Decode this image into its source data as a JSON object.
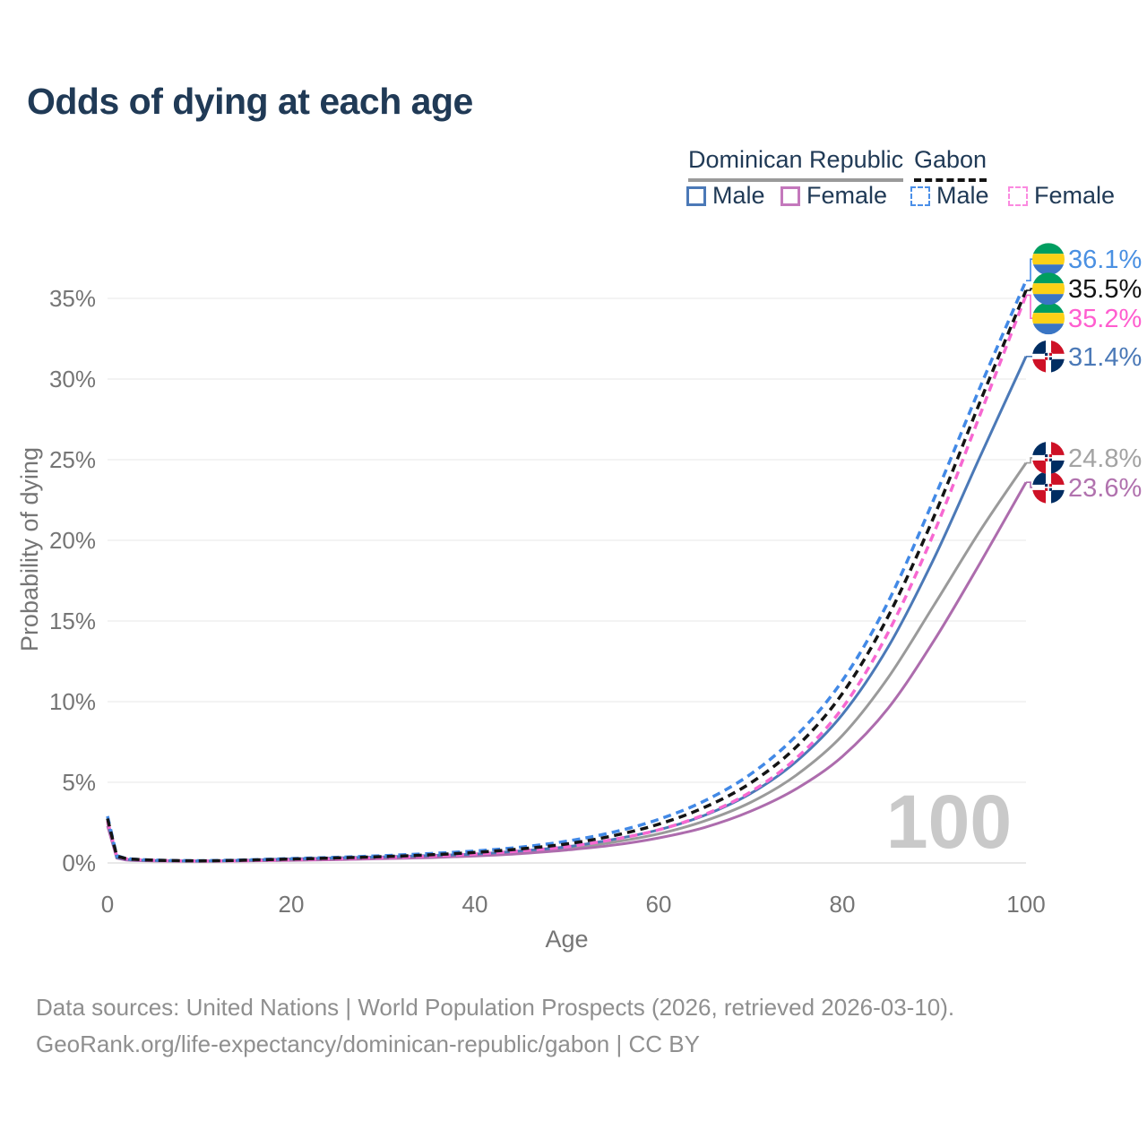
{
  "title": "Odds of dying at each age",
  "watermark_age": "100",
  "legend": {
    "groups": [
      {
        "label": "Dominican Republic",
        "line_style": "solid",
        "line_color": "#9a9a9a"
      },
      {
        "label": "Gabon",
        "line_style": "dashed",
        "line_color": "#141414"
      }
    ],
    "items": [
      {
        "label": "Male",
        "group": "Dominican Republic",
        "swatch_color": "#4b79b7",
        "swatch_style": "solid"
      },
      {
        "label": "Female",
        "group": "Dominican Republic",
        "swatch_color": "#c478bc",
        "swatch_style": "solid"
      },
      {
        "label": "Male",
        "group": "Gabon",
        "swatch_color": "#4a8fe8",
        "swatch_style": "dashed"
      },
      {
        "label": "Female",
        "group": "Gabon",
        "swatch_color": "#fb8ae0",
        "swatch_style": "dashed"
      }
    ]
  },
  "chart_data": {
    "type": "line",
    "title": "Odds of dying at each age",
    "xlabel": "Age",
    "ylabel": "Probability of dying",
    "xlim": [
      0,
      100
    ],
    "ylim": [
      0,
      38.5
    ],
    "x_ticks": [
      0,
      20,
      40,
      60,
      80,
      100
    ],
    "y_ticks": [
      0,
      5,
      10,
      15,
      20,
      25,
      30,
      35
    ],
    "y_tick_suffix": "%",
    "grid": "horizontal",
    "legend_position": "top-right",
    "x": [
      0,
      1,
      2,
      5,
      10,
      15,
      20,
      25,
      30,
      35,
      40,
      45,
      50,
      55,
      60,
      65,
      70,
      75,
      80,
      85,
      90,
      95,
      100
    ],
    "series": [
      {
        "id": "dr-male",
        "country": "Dominican Republic",
        "sex": "Male",
        "color": "#4b79b7",
        "label_color": "#4b79b7",
        "dashed": false,
        "flag": "dr",
        "end_label": "31.4%",
        "end_value": 31.4,
        "values": [
          2.6,
          0.35,
          0.22,
          0.15,
          0.12,
          0.17,
          0.25,
          0.31,
          0.38,
          0.46,
          0.55,
          0.75,
          1.0,
          1.45,
          2.05,
          2.95,
          4.3,
          6.3,
          9.2,
          13.4,
          18.9,
          25.2,
          31.4
        ]
      },
      {
        "id": "dr-female",
        "country": "Dominican Republic",
        "sex": "Female",
        "color": "#ad6cad",
        "label_color": "#b172ae",
        "dashed": false,
        "flag": "dr",
        "end_label": "23.6%",
        "end_value": 23.6,
        "values": [
          2.3,
          0.3,
          0.18,
          0.12,
          0.1,
          0.12,
          0.16,
          0.2,
          0.26,
          0.33,
          0.43,
          0.58,
          0.8,
          1.1,
          1.55,
          2.2,
          3.2,
          4.6,
          6.6,
          9.6,
          13.8,
          18.6,
          23.6
        ]
      },
      {
        "id": "dr-total",
        "country": "Dominican Republic",
        "sex": "Both",
        "color": "#9a9a9a",
        "label_color": "#a3a3a3",
        "dashed": false,
        "flag": "dr",
        "end_label": "24.8%",
        "end_value": 24.8,
        "values": [
          2.45,
          0.32,
          0.2,
          0.13,
          0.11,
          0.14,
          0.2,
          0.26,
          0.32,
          0.4,
          0.5,
          0.67,
          0.9,
          1.28,
          1.8,
          2.6,
          3.75,
          5.45,
          7.9,
          11.5,
          16.0,
          20.6,
          24.8
        ]
      },
      {
        "id": "gabon-male",
        "country": "Gabon",
        "sex": "Male",
        "color": "#4289e6",
        "label_color": "#4a90e2",
        "dashed": true,
        "flag": "gabon",
        "end_label": "36.1%",
        "end_value": 36.1,
        "values": [
          2.9,
          0.45,
          0.28,
          0.18,
          0.14,
          0.19,
          0.27,
          0.35,
          0.45,
          0.58,
          0.74,
          0.98,
          1.35,
          1.9,
          2.7,
          3.85,
          5.5,
          7.9,
          11.3,
          16.2,
          22.6,
          29.5,
          36.1
        ]
      },
      {
        "id": "gabon-female",
        "country": "Gabon",
        "sex": "Female",
        "color": "#f768d1",
        "label_color": "#ff5ecf",
        "dashed": true,
        "flag": "gabon",
        "end_label": "35.2%",
        "end_value": 35.2,
        "values": [
          2.6,
          0.4,
          0.25,
          0.16,
          0.12,
          0.14,
          0.2,
          0.26,
          0.33,
          0.42,
          0.55,
          0.75,
          1.0,
          1.45,
          2.05,
          3.0,
          4.4,
          6.5,
          9.6,
          14.3,
          20.5,
          27.8,
          35.2
        ]
      },
      {
        "id": "gabon-total",
        "country": "Gabon",
        "sex": "Both",
        "color": "#141414",
        "label_color": "#141414",
        "dashed": true,
        "flag": "gabon",
        "end_label": "35.5%",
        "end_value": 35.5,
        "values": [
          2.75,
          0.42,
          0.27,
          0.17,
          0.13,
          0.17,
          0.24,
          0.31,
          0.39,
          0.5,
          0.65,
          0.87,
          1.18,
          1.68,
          2.4,
          3.45,
          4.95,
          7.2,
          10.5,
          15.3,
          21.5,
          28.6,
          35.5
        ]
      }
    ],
    "flag_colors": {
      "gabon": {
        "green": "#009e60",
        "yellow": "#fcd116",
        "blue": "#3a75c4"
      },
      "dr": {
        "blue": "#002d62",
        "red": "#ce1126",
        "white": "#ffffff"
      }
    }
  },
  "footer": {
    "line1": "Data sources: United Nations | World Population Prospects (2026, retrieved 2026-03-10).",
    "line2": "GeoRank.org/life-expectancy/dominican-republic/gabon | CC BY"
  }
}
